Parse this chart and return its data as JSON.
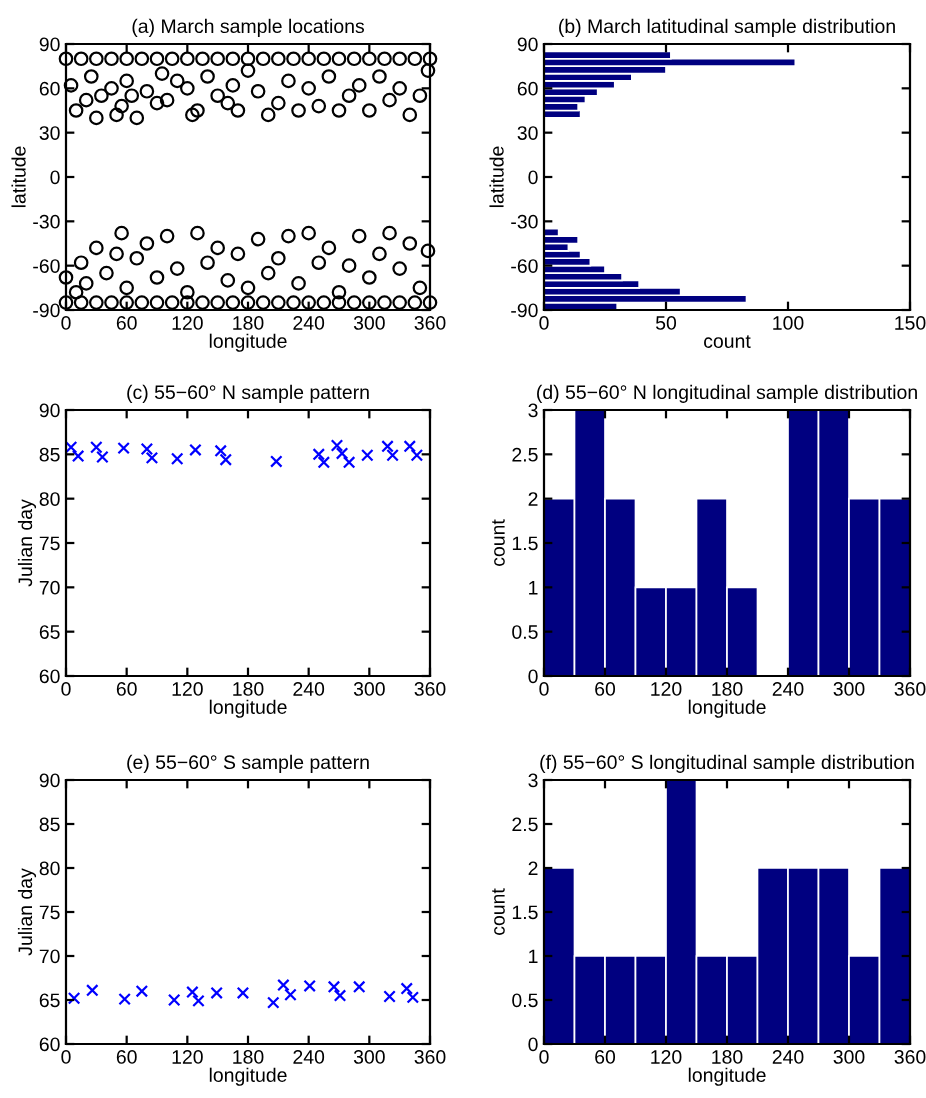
{
  "chart_data": [
    {
      "type": "scatter",
      "title": "(a) March sample locations",
      "xlabel": "longitude",
      "ylabel": "latitude",
      "marker": "circle",
      "xlim": [
        0,
        360
      ],
      "ylim": [
        -90,
        90
      ],
      "xticks": [
        0,
        60,
        120,
        180,
        240,
        300,
        360
      ],
      "yticks": [
        -90,
        -60,
        -30,
        0,
        30,
        60,
        90
      ],
      "series": [
        {
          "color": "#000000",
          "x": [
            0,
            15,
            30,
            45,
            60,
            75,
            90,
            105,
            120,
            135,
            150,
            165,
            180,
            195,
            210,
            225,
            240,
            255,
            270,
            285,
            300,
            315,
            330,
            345,
            360,
            5,
            10,
            20,
            25,
            30,
            35,
            45,
            50,
            55,
            60,
            65,
            70,
            80,
            90,
            95,
            100,
            110,
            120,
            125,
            130,
            140,
            150,
            160,
            165,
            170,
            180,
            190,
            200,
            210,
            220,
            230,
            240,
            250,
            260,
            270,
            280,
            290,
            300,
            310,
            320,
            330,
            340,
            350,
            358
          ],
          "values": [
            80,
            80,
            80,
            80,
            80,
            80,
            80,
            80,
            80,
            80,
            80,
            80,
            80,
            80,
            80,
            80,
            80,
            80,
            80,
            80,
            80,
            80,
            80,
            80,
            80,
            62,
            45,
            52,
            68,
            40,
            55,
            60,
            42,
            48,
            65,
            55,
            40,
            58,
            50,
            70,
            52,
            65,
            60,
            42,
            45,
            68,
            55,
            50,
            62,
            45,
            72,
            58,
            42,
            50,
            65,
            45,
            60,
            48,
            68,
            45,
            55,
            62,
            45,
            68,
            52,
            60,
            42,
            55,
            72
          ]
        },
        {
          "color": "#000000",
          "x": [
            0,
            15,
            30,
            45,
            60,
            75,
            90,
            105,
            120,
            135,
            150,
            165,
            180,
            195,
            210,
            225,
            240,
            255,
            270,
            285,
            300,
            315,
            330,
            345,
            360,
            0,
            10,
            15,
            20,
            30,
            40,
            50,
            55,
            60,
            70,
            80,
            90,
            100,
            110,
            120,
            130,
            140,
            150,
            160,
            170,
            180,
            190,
            200,
            210,
            220,
            230,
            240,
            250,
            260,
            270,
            280,
            290,
            300,
            310,
            320,
            330,
            340,
            350,
            358
          ],
          "values": [
            -85,
            -85,
            -85,
            -85,
            -85,
            -85,
            -85,
            -85,
            -85,
            -85,
            -85,
            -85,
            -85,
            -85,
            -85,
            -85,
            -85,
            -85,
            -85,
            -85,
            -85,
            -85,
            -85,
            -85,
            -85,
            -68,
            -78,
            -58,
            -72,
            -48,
            -65,
            -52,
            -38,
            -75,
            -55,
            -45,
            -68,
            -40,
            -62,
            -78,
            -38,
            -58,
            -48,
            -70,
            -52,
            -75,
            -42,
            -65,
            -55,
            -40,
            -72,
            -38,
            -58,
            -48,
            -78,
            -60,
            -40,
            -68,
            -52,
            -38,
            -62,
            -45,
            -75,
            -50
          ]
        }
      ]
    },
    {
      "type": "histogram",
      "orientation": "horizontal",
      "title": "(b) March latitudinal sample distribution",
      "xlabel": "count",
      "ylabel": "latitude",
      "color": "#000080",
      "xlim": [
        0,
        150
      ],
      "ylim": [
        -90,
        90
      ],
      "xticks": [
        0,
        50,
        100,
        150
      ],
      "yticks": [
        -90,
        -60,
        -30,
        0,
        30,
        60,
        90
      ],
      "bins": [
        -90,
        -85,
        -80,
        -75,
        -70,
        -65,
        -60,
        -55,
        -50,
        -45,
        -40,
        -35,
        -30,
        -25,
        -20,
        -15,
        -10,
        -5,
        0,
        5,
        10,
        15,
        20,
        25,
        30,
        35,
        40,
        45,
        50,
        55,
        60,
        65,
        70,
        75,
        80,
        85
      ],
      "values": [
        30,
        83,
        56,
        39,
        32,
        25,
        19,
        15,
        10,
        14,
        6,
        0,
        0,
        0,
        0,
        0,
        0,
        0,
        0,
        0,
        0,
        0,
        0,
        0,
        0,
        0,
        15,
        14,
        17,
        22,
        29,
        36,
        50,
        103,
        52
      ]
    },
    {
      "type": "scatter",
      "title": "(c) 55−60° N sample pattern",
      "xlabel": "longitude",
      "ylabel": "Julian day",
      "marker": "cross",
      "xlim": [
        0,
        360
      ],
      "ylim": [
        60,
        90
      ],
      "xticks": [
        0,
        60,
        120,
        180,
        240,
        300,
        360
      ],
      "yticks": [
        60,
        65,
        70,
        75,
        80,
        85,
        90
      ],
      "series": [
        {
          "color": "#0000ff",
          "x": [
            5,
            12,
            30,
            36,
            57,
            80,
            85,
            110,
            128,
            153,
            158,
            208,
            250,
            255,
            268,
            273,
            280,
            298,
            318,
            323,
            340,
            347
          ],
          "values": [
            85.8,
            84.8,
            85.8,
            84.7,
            85.7,
            85.6,
            84.6,
            84.5,
            85.5,
            85.4,
            84.4,
            84.2,
            85.0,
            84.1,
            86.0,
            85.1,
            84.1,
            84.9,
            85.9,
            84.9,
            85.9,
            84.9
          ]
        }
      ]
    },
    {
      "type": "histogram",
      "title": "(d) 55−60° N longitudinal sample distribution",
      "xlabel": "longitude",
      "ylabel": "count",
      "color": "#000080",
      "xlim": [
        0,
        360
      ],
      "ylim": [
        0,
        3
      ],
      "xticks": [
        0,
        60,
        120,
        180,
        240,
        300,
        360
      ],
      "yticks": [
        0,
        0.5,
        1,
        1.5,
        2,
        2.5,
        3
      ],
      "bins": [
        0,
        30,
        60,
        90,
        120,
        150,
        180,
        210,
        240,
        270,
        300,
        330,
        360
      ],
      "values": [
        2,
        3,
        2,
        1,
        1,
        2,
        1,
        0,
        3,
        3,
        2,
        2
      ]
    },
    {
      "type": "scatter",
      "title": "(e) 55−60° S sample pattern",
      "xlabel": "longitude",
      "ylabel": "Julian day",
      "marker": "cross",
      "xlim": [
        0,
        360
      ],
      "ylim": [
        60,
        90
      ],
      "xticks": [
        0,
        60,
        120,
        180,
        240,
        300,
        360
      ],
      "yticks": [
        60,
        65,
        70,
        75,
        80,
        85,
        90
      ],
      "series": [
        {
          "color": "#0000ff",
          "x": [
            8,
            26,
            58,
            75,
            107,
            125,
            131,
            149,
            175,
            205,
            215,
            222,
            241,
            265,
            271,
            290,
            320,
            337,
            343
          ],
          "values": [
            65.2,
            66.1,
            65.1,
            66.0,
            65.0,
            65.9,
            64.9,
            65.8,
            65.8,
            64.7,
            66.7,
            65.6,
            66.6,
            66.5,
            65.5,
            66.5,
            65.4,
            66.3,
            65.3
          ]
        }
      ]
    },
    {
      "type": "histogram",
      "title": "(f) 55−60° S longitudinal sample distribution",
      "xlabel": "longitude",
      "ylabel": "count",
      "color": "#000080",
      "xlim": [
        0,
        360
      ],
      "ylim": [
        0,
        3
      ],
      "xticks": [
        0,
        60,
        120,
        180,
        240,
        300,
        360
      ],
      "yticks": [
        0,
        0.5,
        1,
        1.5,
        2,
        2.5,
        3
      ],
      "bins": [
        0,
        30,
        60,
        90,
        120,
        150,
        180,
        210,
        240,
        270,
        300,
        330,
        360
      ],
      "values": [
        2,
        1,
        1,
        1,
        3,
        1,
        1,
        2,
        2,
        2,
        1,
        2
      ]
    }
  ]
}
